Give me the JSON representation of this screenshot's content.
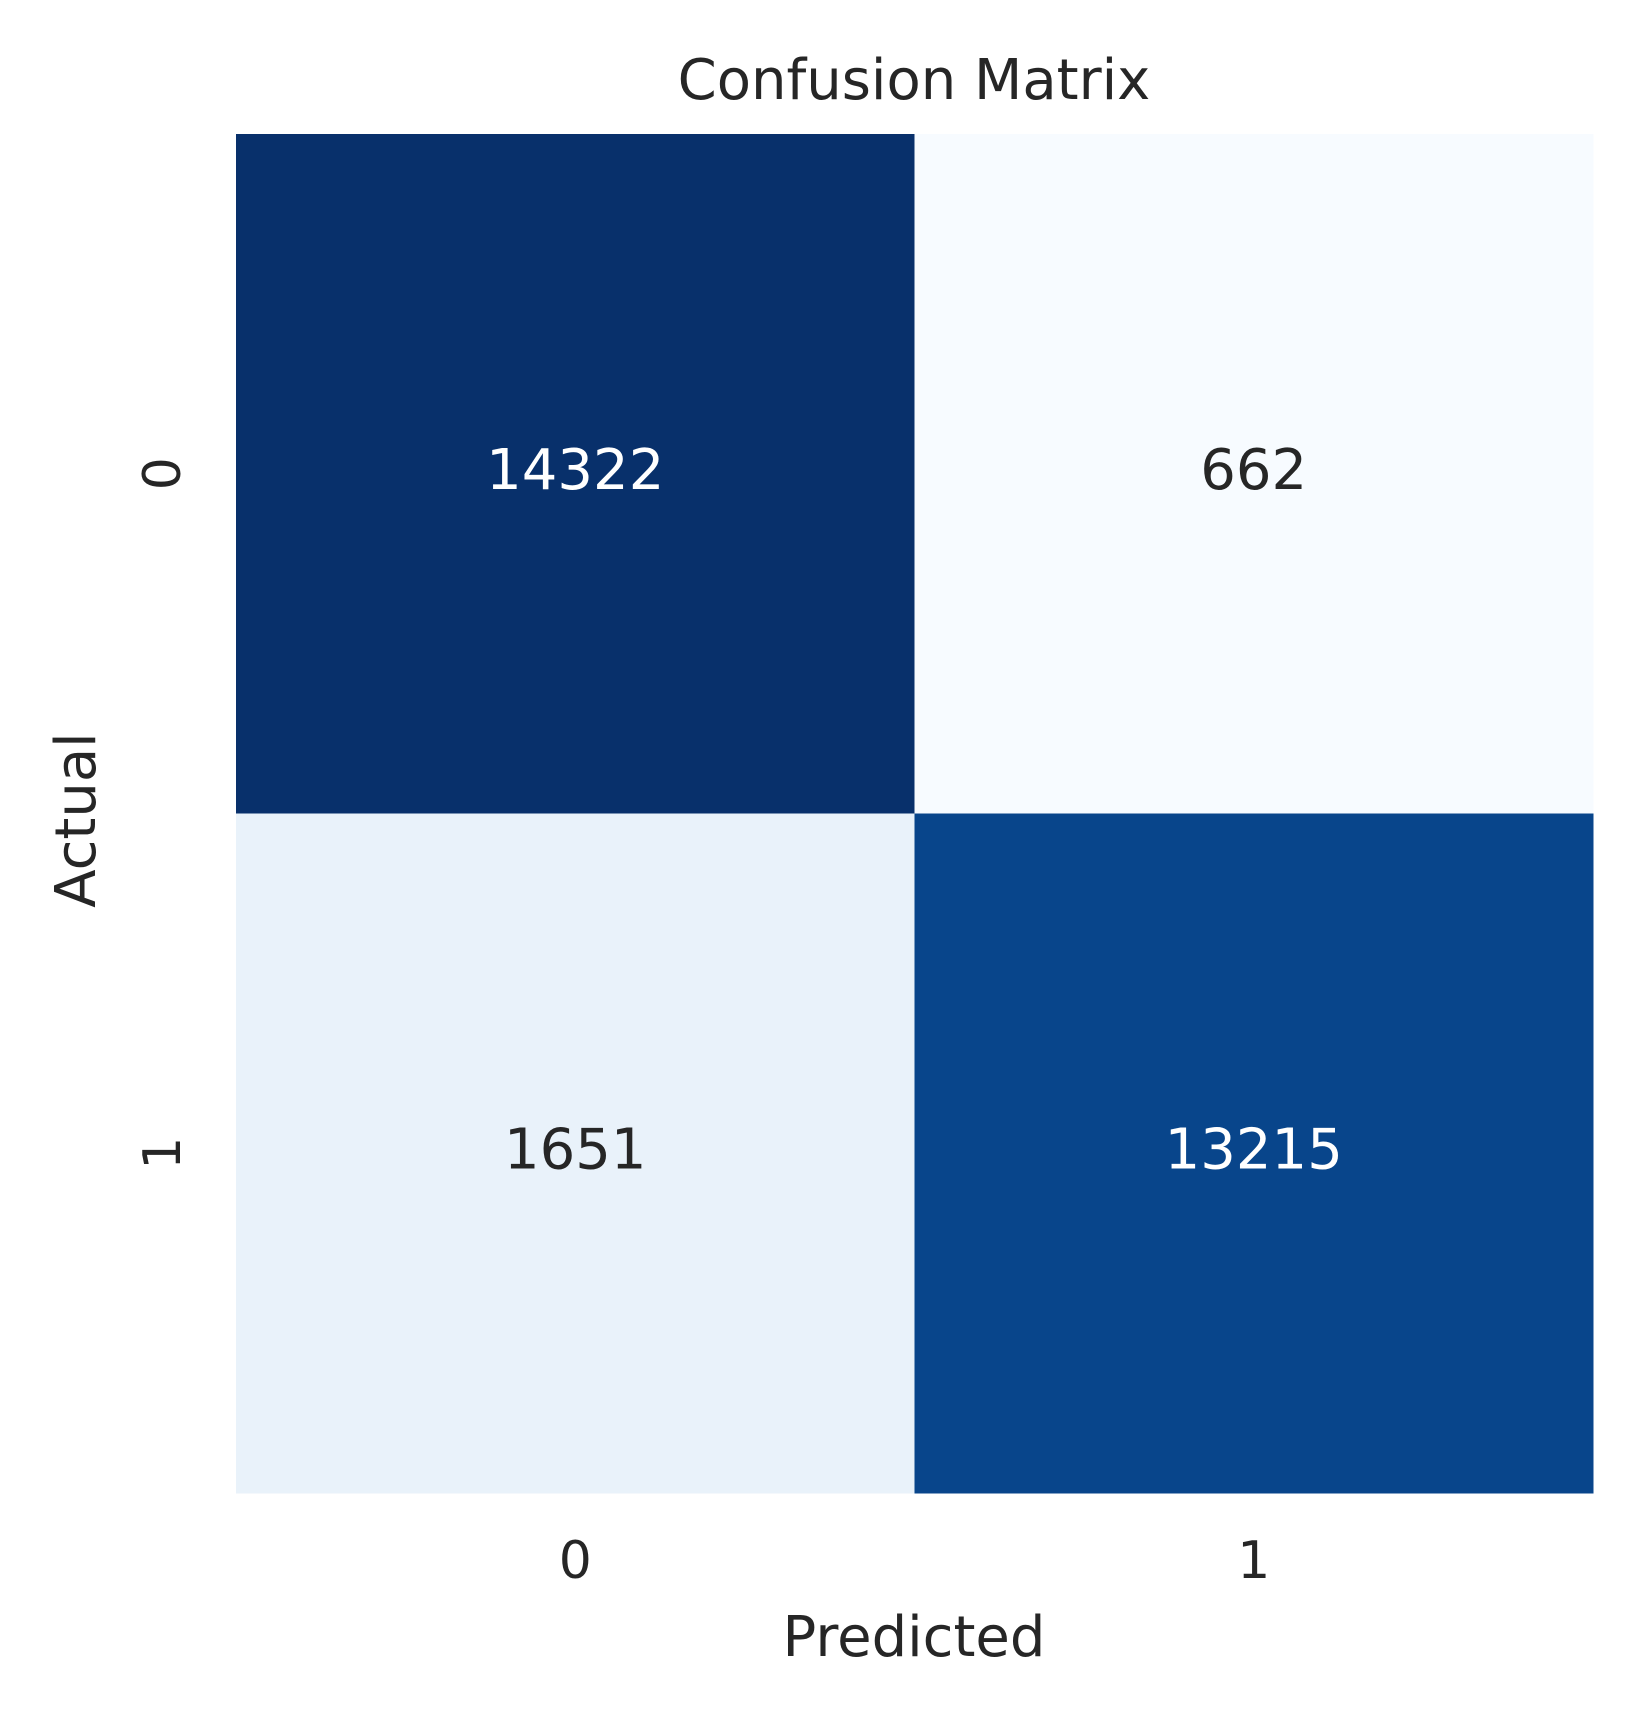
{
  "chart_data": {
    "type": "heatmap",
    "title": "Confusion Matrix",
    "xlabel": "Predicted",
    "ylabel": "Actual",
    "x_categories": [
      "0",
      "1"
    ],
    "y_categories": [
      "0",
      "1"
    ],
    "values": [
      [
        14322,
        662
      ],
      [
        1651,
        13215
      ]
    ],
    "colormap": [
      "#f7fbff",
      "#deebf7",
      "#c6dbef",
      "#9ecae1",
      "#6baed6",
      "#4292c6",
      "#2171b5",
      "#08519c",
      "#08306b"
    ]
  }
}
